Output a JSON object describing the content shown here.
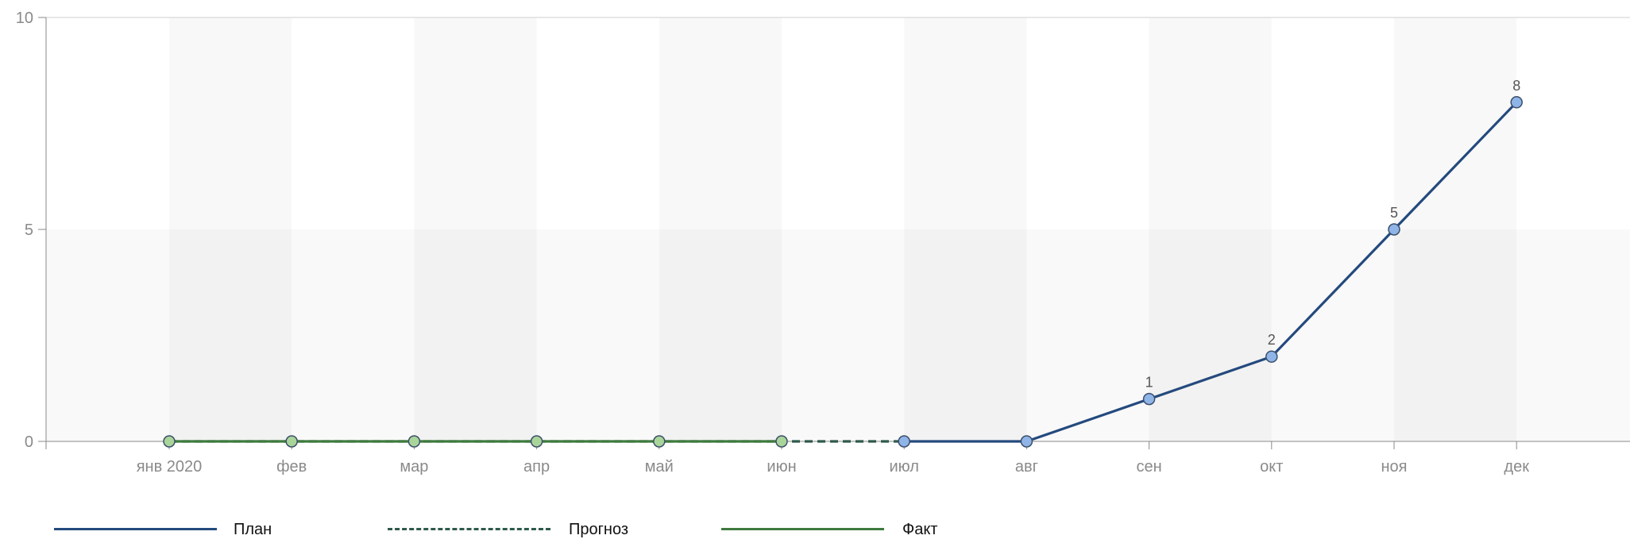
{
  "chart_data": {
    "type": "line",
    "categories": [
      "янв 2020",
      "фев",
      "мар",
      "апр",
      "май",
      "июн",
      "июл",
      "авг",
      "сен",
      "окт",
      "ноя",
      "дек"
    ],
    "y_ticks": [
      0,
      5,
      10
    ],
    "ylim": [
      0,
      10
    ],
    "series": [
      {
        "name": "План",
        "color": "#244a7e",
        "dash": "solid",
        "marker_color": "#8fb4e8",
        "values": [
          null,
          null,
          null,
          null,
          null,
          null,
          0,
          0,
          1,
          2,
          5,
          8
        ],
        "data_labels": [
          null,
          null,
          null,
          null,
          null,
          null,
          null,
          null,
          "1",
          "2",
          "5",
          "8"
        ]
      },
      {
        "name": "Прогноз",
        "color": "#2e5a4a",
        "dash": "dashed",
        "marker_color": null,
        "values": [
          0,
          0,
          0,
          0,
          0,
          0,
          0,
          null,
          null,
          null,
          null,
          null
        ]
      },
      {
        "name": "Факт",
        "color": "#3e7a3e",
        "dash": "solid",
        "marker_color": "#a9d49a",
        "values": [
          0,
          0,
          0,
          0,
          0,
          0,
          null,
          null,
          null,
          null,
          null,
          null
        ]
      }
    ],
    "legend_position": "bottom-left",
    "grid": true
  }
}
